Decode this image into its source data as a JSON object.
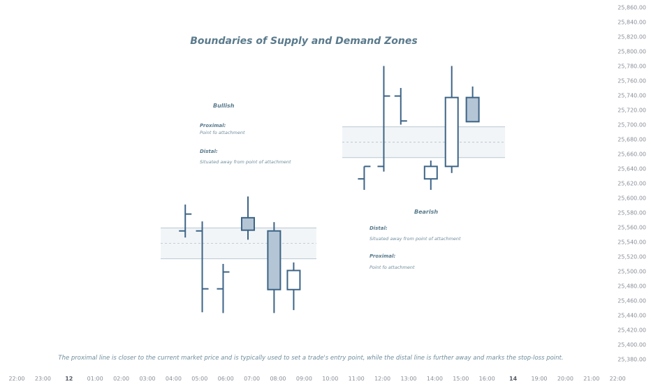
{
  "chart_data": {
    "type": "candlestick",
    "title": "Boundaries of Supply and Demand Zones",
    "footnote": "The proximal line is closer to the current market price and is typically used to set a trade's entry point, while the distal line is further away and marks the stop-loss point.",
    "x_ticks": [
      {
        "label": "22:00",
        "bold": false
      },
      {
        "label": "23:00",
        "bold": false
      },
      {
        "label": "12",
        "bold": true
      },
      {
        "label": "01:00",
        "bold": false
      },
      {
        "label": "02:00",
        "bold": false
      },
      {
        "label": "03:00",
        "bold": false
      },
      {
        "label": "04:00",
        "bold": false
      },
      {
        "label": "05:00",
        "bold": false
      },
      {
        "label": "06:00",
        "bold": false
      },
      {
        "label": "07:00",
        "bold": false
      },
      {
        "label": "08:00",
        "bold": false
      },
      {
        "label": "09:00",
        "bold": false
      },
      {
        "label": "10:00",
        "bold": false
      },
      {
        "label": "11:00",
        "bold": false
      },
      {
        "label": "12:00",
        "bold": false
      },
      {
        "label": "13:00",
        "bold": false
      },
      {
        "label": "14:00",
        "bold": false
      },
      {
        "label": "15:00",
        "bold": false
      },
      {
        "label": "16:00",
        "bold": false
      },
      {
        "label": "14",
        "bold": true
      },
      {
        "label": "19:00",
        "bold": false
      },
      {
        "label": "20:00",
        "bold": false
      },
      {
        "label": "21:00",
        "bold": false
      },
      {
        "label": "22:00",
        "bold": false
      }
    ],
    "y_ticks": [
      "25,860.00",
      "25,840.00",
      "25,820.00",
      "25,800.00",
      "25,780.00",
      "25,760.00",
      "25,740.00",
      "25,720.00",
      "25,700.00",
      "25,680.00",
      "25,660.00",
      "25,640.00",
      "25,620.00",
      "25,600.00",
      "25,580.00",
      "25,560.00",
      "25,540.00",
      "25,520.00",
      "25,500.00",
      "25,480.00",
      "25,460.00",
      "25,440.00",
      "25,420.00",
      "25,400.00",
      "25,380.00"
    ],
    "ylim": [
      25370,
      25870
    ],
    "bullish": {
      "label": "Bullish",
      "proximal_label": "Proximal:",
      "proximal_text": "Point fo attachment",
      "distal_label": "Distal:",
      "distal_text": "Situated away from point of attachment",
      "zone": {
        "top": 25559,
        "mid": 25538,
        "bottom": 25517
      },
      "bars": [
        {
          "t": 6.45,
          "kind": "ohlc",
          "open": 25555,
          "high": 25591,
          "low": 25546,
          "close": 25578
        },
        {
          "t": 7.1,
          "kind": "ohlc",
          "open": 25555,
          "high": 25568,
          "low": 25444,
          "close": 25476
        },
        {
          "t": 7.9,
          "kind": "ohlc",
          "open": 25476,
          "high": 25510,
          "low": 25443,
          "close": 25499
        },
        {
          "t": 8.85,
          "kind": "candle",
          "open": 25556,
          "high": 25602,
          "low": 25543,
          "close": 25573,
          "filled": true
        },
        {
          "t": 9.85,
          "kind": "candle",
          "open": 25555,
          "high": 25567,
          "low": 25443,
          "close": 25475,
          "filled": true
        },
        {
          "t": 10.6,
          "kind": "candle",
          "open": 25475,
          "high": 25512,
          "low": 25447,
          "close": 25501,
          "filled": false
        }
      ]
    },
    "bearish": {
      "label": "Bearish",
      "distal_label": "Distal:",
      "distal_text": "Situated away from point of attachment",
      "proximal_label": "Proximal:",
      "proximal_text": "Point fo attachment",
      "zone": {
        "top": 25697,
        "mid": 25676,
        "bottom": 25655
      },
      "bars": [
        {
          "t": 13.3,
          "kind": "ohlc",
          "open": 25626,
          "high": 25643,
          "low": 25611,
          "close": 25643
        },
        {
          "t": 14.05,
          "kind": "ohlc",
          "open": 25643,
          "high": 25780,
          "low": 25636,
          "close": 25739
        },
        {
          "t": 14.7,
          "kind": "ohlc",
          "open": 25739,
          "high": 25750,
          "low": 25700,
          "close": 25705
        },
        {
          "t": 15.85,
          "kind": "candle",
          "open": 25626,
          "high": 25651,
          "low": 25611,
          "close": 25643,
          "filled": false
        },
        {
          "t": 16.65,
          "kind": "candle",
          "open": 25643,
          "high": 25780,
          "low": 25634,
          "close": 25737,
          "filled": false
        },
        {
          "t": 17.45,
          "kind": "candle",
          "open": 25704,
          "high": 25752,
          "low": 25704,
          "close": 25737,
          "filled": true
        }
      ]
    },
    "colors": {
      "bar": "#3d6486",
      "candle_fill": "#b4c5d5",
      "zone_fill": "#f2f5f7",
      "zone_line": "#b8c8d2",
      "zone_mid": "#b0c0cc"
    }
  }
}
